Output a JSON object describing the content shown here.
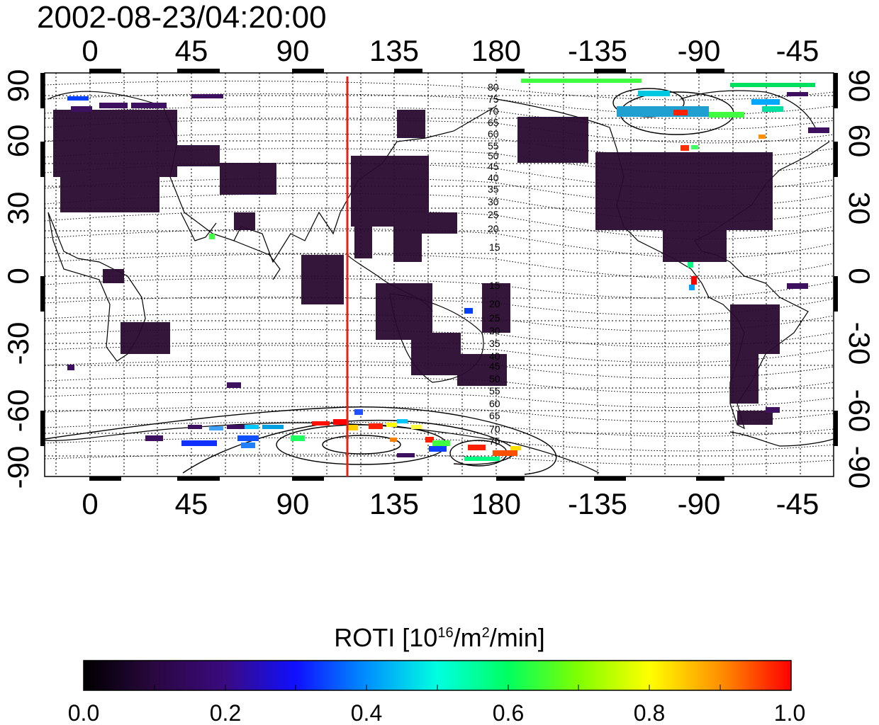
{
  "title": "2002-08-23/04:20:00",
  "map": {
    "top_axis_labels": [
      "0",
      "45",
      "90",
      "135",
      "180",
      "-135",
      "-90",
      "-45"
    ],
    "bottom_axis_labels": [
      "0",
      "45",
      "90",
      "135",
      "180",
      "-135",
      "-90",
      "-45"
    ],
    "left_axis_labels": [
      "90",
      "60",
      "30",
      "0",
      "-30",
      "-60",
      "-90"
    ],
    "right_axis_labels": [
      "90",
      "60",
      "30",
      "0",
      "-30",
      "-60",
      "-90"
    ],
    "marker_longitude": 115,
    "marker_color": "#e2231a",
    "contour_labels_north": [
      "80",
      "75",
      "70",
      "65",
      "60",
      "55",
      "50",
      "45",
      "40",
      "35",
      "30",
      "25",
      "20",
      "15"
    ],
    "contour_labels_south": [
      "15",
      "20",
      "25",
      "30",
      "35",
      "40",
      "45",
      "50",
      "55",
      "60",
      "65",
      "70",
      "75"
    ]
  },
  "colorbar": {
    "title_prefix": "ROTI  [10",
    "title_sup1": "16",
    "title_mid": "/m",
    "title_sup2": "2",
    "title_suffix": "/min]",
    "tick_labels": [
      "0.0",
      "0.2",
      "0.4",
      "0.6",
      "0.8",
      "1.0"
    ],
    "colors": [
      "#000000",
      "#3a0a60",
      "#3b10c8",
      "#0040ff",
      "#00b8ff",
      "#00ffc8",
      "#00ff40",
      "#80ff00",
      "#ffff00",
      "#ffa000",
      "#ff0000"
    ]
  }
}
